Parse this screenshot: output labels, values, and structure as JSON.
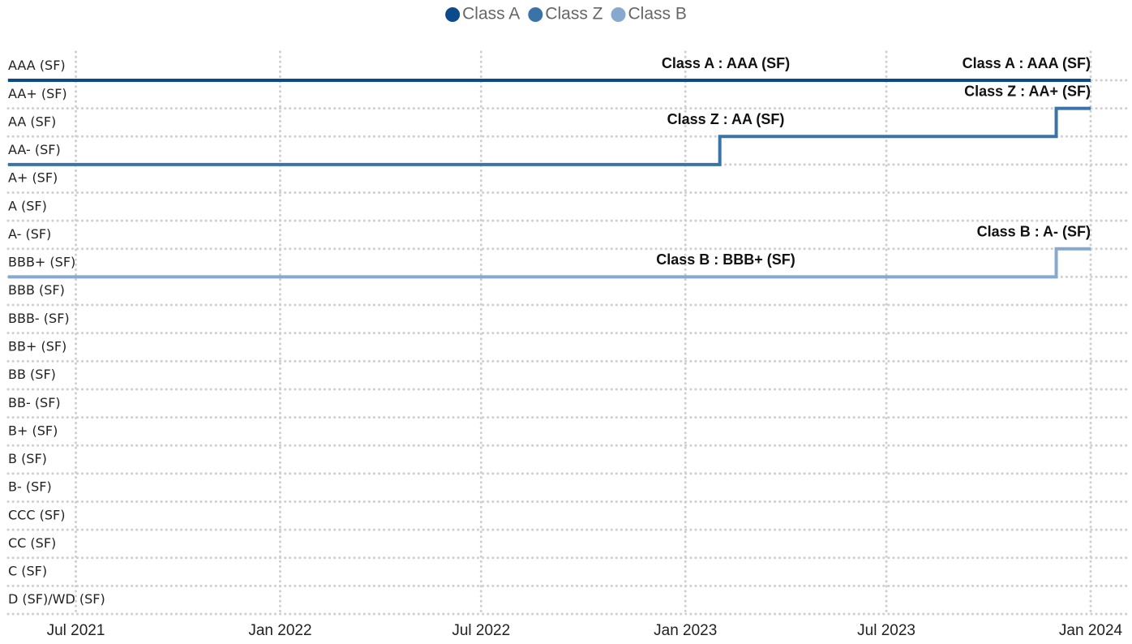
{
  "chart_data": {
    "type": "step",
    "ylim": [
      1,
      20
    ],
    "yticks": [
      {
        "value": 20,
        "label": "AAA (SF)"
      },
      {
        "value": 19,
        "label": "AA+ (SF)"
      },
      {
        "value": 18,
        "label": "AA (SF)"
      },
      {
        "value": 17,
        "label": "AA- (SF)"
      },
      {
        "value": 16,
        "label": "A+ (SF)"
      },
      {
        "value": 15,
        "label": "A (SF)"
      },
      {
        "value": 14,
        "label": "A- (SF)"
      },
      {
        "value": 13,
        "label": "BBB+ (SF)"
      },
      {
        "value": 12,
        "label": "BBB (SF)"
      },
      {
        "value": 11,
        "label": "BBB- (SF)"
      },
      {
        "value": 10,
        "label": "BB+ (SF)"
      },
      {
        "value": 9,
        "label": "BB (SF)"
      },
      {
        "value": 8,
        "label": "BB- (SF)"
      },
      {
        "value": 7,
        "label": "B+ (SF)"
      },
      {
        "value": 6,
        "label": "B (SF)"
      },
      {
        "value": 5,
        "label": "B- (SF)"
      },
      {
        "value": 4,
        "label": "CCC (SF)"
      },
      {
        "value": 3,
        "label": "CC (SF)"
      },
      {
        "value": 2,
        "label": "C (SF)"
      },
      {
        "value": 1,
        "label": "D (SF)/WD (SF)"
      }
    ],
    "xlim": [
      "2021-05",
      "2024-01"
    ],
    "xticks": [
      {
        "value": "2021-07",
        "label": "Jul 2021"
      },
      {
        "value": "2022-01",
        "label": "Jan 2022"
      },
      {
        "value": "2022-07",
        "label": "Jul 2022"
      },
      {
        "value": "2023-01",
        "label": "Jan 2023"
      },
      {
        "value": "2023-07",
        "label": "Jul 2023"
      },
      {
        "value": "2024-01",
        "label": "Jan 2024"
      }
    ],
    "grid": true,
    "legend": "top",
    "series": [
      {
        "name": "Class A",
        "color": "#0d4a8c",
        "x": [
          "2021-05",
          "2024-01"
        ],
        "values": [
          20,
          20
        ],
        "value_labels": [
          "Class A : AAA (SF)",
          "Class A : AAA (SF)"
        ]
      },
      {
        "name": "Class Z",
        "color": "#3a73a8",
        "x": [
          "2021-05",
          "2023-02",
          "2023-12",
          "2024-01"
        ],
        "values": [
          17,
          18,
          19,
          19
        ],
        "value_labels": [
          null,
          "Class Z : AA (SF)",
          null,
          "Class Z : AA+ (SF)"
        ]
      },
      {
        "name": "Class B",
        "color": "#87a9cd",
        "x": [
          "2021-05",
          "2023-12",
          "2024-01"
        ],
        "values": [
          13,
          14,
          14
        ],
        "value_labels": [
          "Class B : BBB+ (SF)",
          null,
          "Class B : A- (SF)"
        ]
      }
    ]
  }
}
